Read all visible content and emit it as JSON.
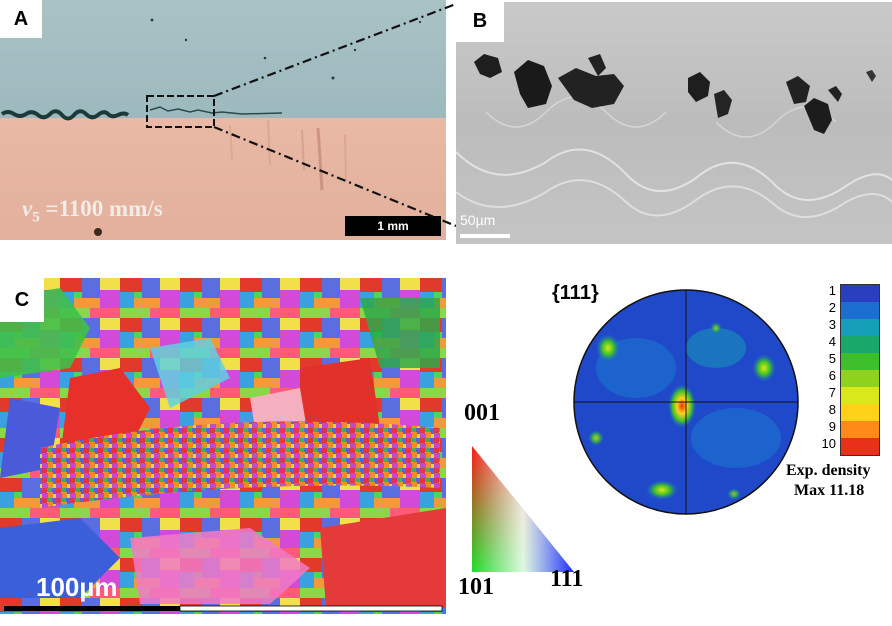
{
  "panels": {
    "a": {
      "label": "A",
      "velocity_symbol": "v",
      "velocity_subscript": "5",
      "velocity_value": " =1100 mm/s",
      "scale_bar": "1 mm"
    },
    "b": {
      "label": "B",
      "scale_bar": "50µm"
    },
    "c": {
      "label": "C",
      "scale_bar": "100µm",
      "ipf_labels": {
        "top": "001",
        "bottom_left": "101",
        "bottom_right": "111"
      }
    },
    "pole_figure": {
      "title": "{111}",
      "density_levels": [
        "1",
        "2",
        "3",
        "4",
        "5",
        "6",
        "7",
        "8",
        "9",
        "10"
      ],
      "density_colors": [
        "#2a3fbf",
        "#1c6fd0",
        "#159fb8",
        "#19a86a",
        "#3cbf2a",
        "#8ed21e",
        "#d8e81a",
        "#ffd21a",
        "#ff8a1a",
        "#e8301a"
      ],
      "caption_line1": "Exp. density",
      "caption_line2": "Max 11.18"
    }
  }
}
